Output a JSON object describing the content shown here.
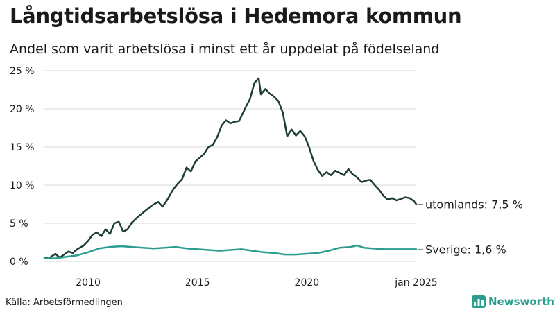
{
  "title": "Långtidsarbetslösa i Hedemora kommun",
  "subtitle": "Andel som varit arbetslösa i minst ett år uppdelat på födelseland",
  "source": "Källa: Arbetsförmedlingen",
  "brand": {
    "name": "Newsworthy",
    "icon": "newsworthy-chart-logo-icon"
  },
  "colors": {
    "utomlands": "#1f3d38",
    "sverige": "#2a9d8f",
    "grid": "#d9d9d9",
    "text": "#1a1a1a"
  },
  "chart_data": {
    "type": "line",
    "title": "Långtidsarbetslösa i Hedemora kommun",
    "xlim": [
      2008.0,
      2025.0
    ],
    "ylim": [
      0,
      25
    ],
    "y_ticks": [
      0,
      5,
      10,
      15,
      20,
      25
    ],
    "y_tick_labels": [
      "0 %",
      "5 %",
      "10 %",
      "15 %",
      "20 %",
      "25 %"
    ],
    "x_ticks": [
      2010,
      2015,
      2020,
      2025
    ],
    "x_tick_labels": [
      "2010",
      "2015",
      "2020",
      "jan 2025"
    ],
    "grid": "horizontal",
    "series": [
      {
        "name": "utomlands",
        "end_label": "utomlands: 7,5 %",
        "points": [
          [
            2008.0,
            0.5
          ],
          [
            2008.2,
            0.4
          ],
          [
            2008.4,
            0.8
          ],
          [
            2008.5,
            1.0
          ],
          [
            2008.7,
            0.5
          ],
          [
            2008.9,
            0.9
          ],
          [
            2009.1,
            1.3
          ],
          [
            2009.3,
            1.1
          ],
          [
            2009.5,
            1.6
          ],
          [
            2009.8,
            2.1
          ],
          [
            2010.0,
            2.7
          ],
          [
            2010.2,
            3.5
          ],
          [
            2010.4,
            3.8
          ],
          [
            2010.6,
            3.3
          ],
          [
            2010.8,
            4.2
          ],
          [
            2011.0,
            3.6
          ],
          [
            2011.2,
            5.0
          ],
          [
            2011.4,
            5.2
          ],
          [
            2011.6,
            3.9
          ],
          [
            2011.8,
            4.2
          ],
          [
            2012.0,
            5.1
          ],
          [
            2012.3,
            5.9
          ],
          [
            2012.6,
            6.6
          ],
          [
            2012.9,
            7.3
          ],
          [
            2013.2,
            7.8
          ],
          [
            2013.4,
            7.2
          ],
          [
            2013.6,
            8.0
          ],
          [
            2013.9,
            9.5
          ],
          [
            2014.1,
            10.2
          ],
          [
            2014.3,
            10.8
          ],
          [
            2014.5,
            12.3
          ],
          [
            2014.7,
            11.8
          ],
          [
            2014.9,
            13.1
          ],
          [
            2015.1,
            13.6
          ],
          [
            2015.3,
            14.1
          ],
          [
            2015.5,
            15.0
          ],
          [
            2015.7,
            15.3
          ],
          [
            2015.9,
            16.3
          ],
          [
            2016.1,
            17.8
          ],
          [
            2016.3,
            18.5
          ],
          [
            2016.5,
            18.1
          ],
          [
            2016.7,
            18.3
          ],
          [
            2016.9,
            18.4
          ],
          [
            2017.0,
            19.0
          ],
          [
            2017.2,
            20.2
          ],
          [
            2017.4,
            21.3
          ],
          [
            2017.6,
            23.4
          ],
          [
            2017.8,
            24.0
          ],
          [
            2017.9,
            21.9
          ],
          [
            2018.1,
            22.6
          ],
          [
            2018.3,
            22.0
          ],
          [
            2018.5,
            21.6
          ],
          [
            2018.7,
            21.0
          ],
          [
            2018.9,
            19.5
          ],
          [
            2019.1,
            16.4
          ],
          [
            2019.3,
            17.3
          ],
          [
            2019.5,
            16.5
          ],
          [
            2019.7,
            17.1
          ],
          [
            2019.9,
            16.4
          ],
          [
            2020.1,
            15.0
          ],
          [
            2020.3,
            13.2
          ],
          [
            2020.5,
            12.0
          ],
          [
            2020.7,
            11.2
          ],
          [
            2020.9,
            11.7
          ],
          [
            2021.1,
            11.3
          ],
          [
            2021.3,
            11.9
          ],
          [
            2021.5,
            11.6
          ],
          [
            2021.7,
            11.3
          ],
          [
            2021.9,
            12.1
          ],
          [
            2022.1,
            11.4
          ],
          [
            2022.3,
            11.0
          ],
          [
            2022.5,
            10.4
          ],
          [
            2022.7,
            10.6
          ],
          [
            2022.9,
            10.7
          ],
          [
            2023.1,
            10.0
          ],
          [
            2023.3,
            9.4
          ],
          [
            2023.5,
            8.6
          ],
          [
            2023.7,
            8.1
          ],
          [
            2023.9,
            8.3
          ],
          [
            2024.1,
            8.0
          ],
          [
            2024.3,
            8.2
          ],
          [
            2024.5,
            8.4
          ],
          [
            2024.7,
            8.3
          ],
          [
            2024.9,
            7.9
          ],
          [
            2025.0,
            7.5
          ]
        ]
      },
      {
        "name": "Sverige",
        "end_label": "Sverige: 1,6 %",
        "points": [
          [
            2008.0,
            0.4
          ],
          [
            2008.5,
            0.4
          ],
          [
            2009.0,
            0.6
          ],
          [
            2009.5,
            0.8
          ],
          [
            2010.0,
            1.2
          ],
          [
            2010.5,
            1.7
          ],
          [
            2011.0,
            1.9
          ],
          [
            2011.5,
            2.0
          ],
          [
            2012.0,
            1.9
          ],
          [
            2012.5,
            1.8
          ],
          [
            2013.0,
            1.7
          ],
          [
            2013.5,
            1.8
          ],
          [
            2014.0,
            1.9
          ],
          [
            2014.5,
            1.7
          ],
          [
            2015.0,
            1.6
          ],
          [
            2015.5,
            1.5
          ],
          [
            2016.0,
            1.4
          ],
          [
            2016.5,
            1.5
          ],
          [
            2017.0,
            1.6
          ],
          [
            2017.5,
            1.4
          ],
          [
            2018.0,
            1.2
          ],
          [
            2018.5,
            1.1
          ],
          [
            2019.0,
            0.9
          ],
          [
            2019.5,
            0.9
          ],
          [
            2020.0,
            1.0
          ],
          [
            2020.5,
            1.1
          ],
          [
            2021.0,
            1.4
          ],
          [
            2021.5,
            1.8
          ],
          [
            2022.0,
            1.9
          ],
          [
            2022.3,
            2.1
          ],
          [
            2022.6,
            1.8
          ],
          [
            2023.0,
            1.7
          ],
          [
            2023.5,
            1.6
          ],
          [
            2024.0,
            1.6
          ],
          [
            2024.5,
            1.6
          ],
          [
            2025.0,
            1.6
          ]
        ]
      }
    ]
  }
}
